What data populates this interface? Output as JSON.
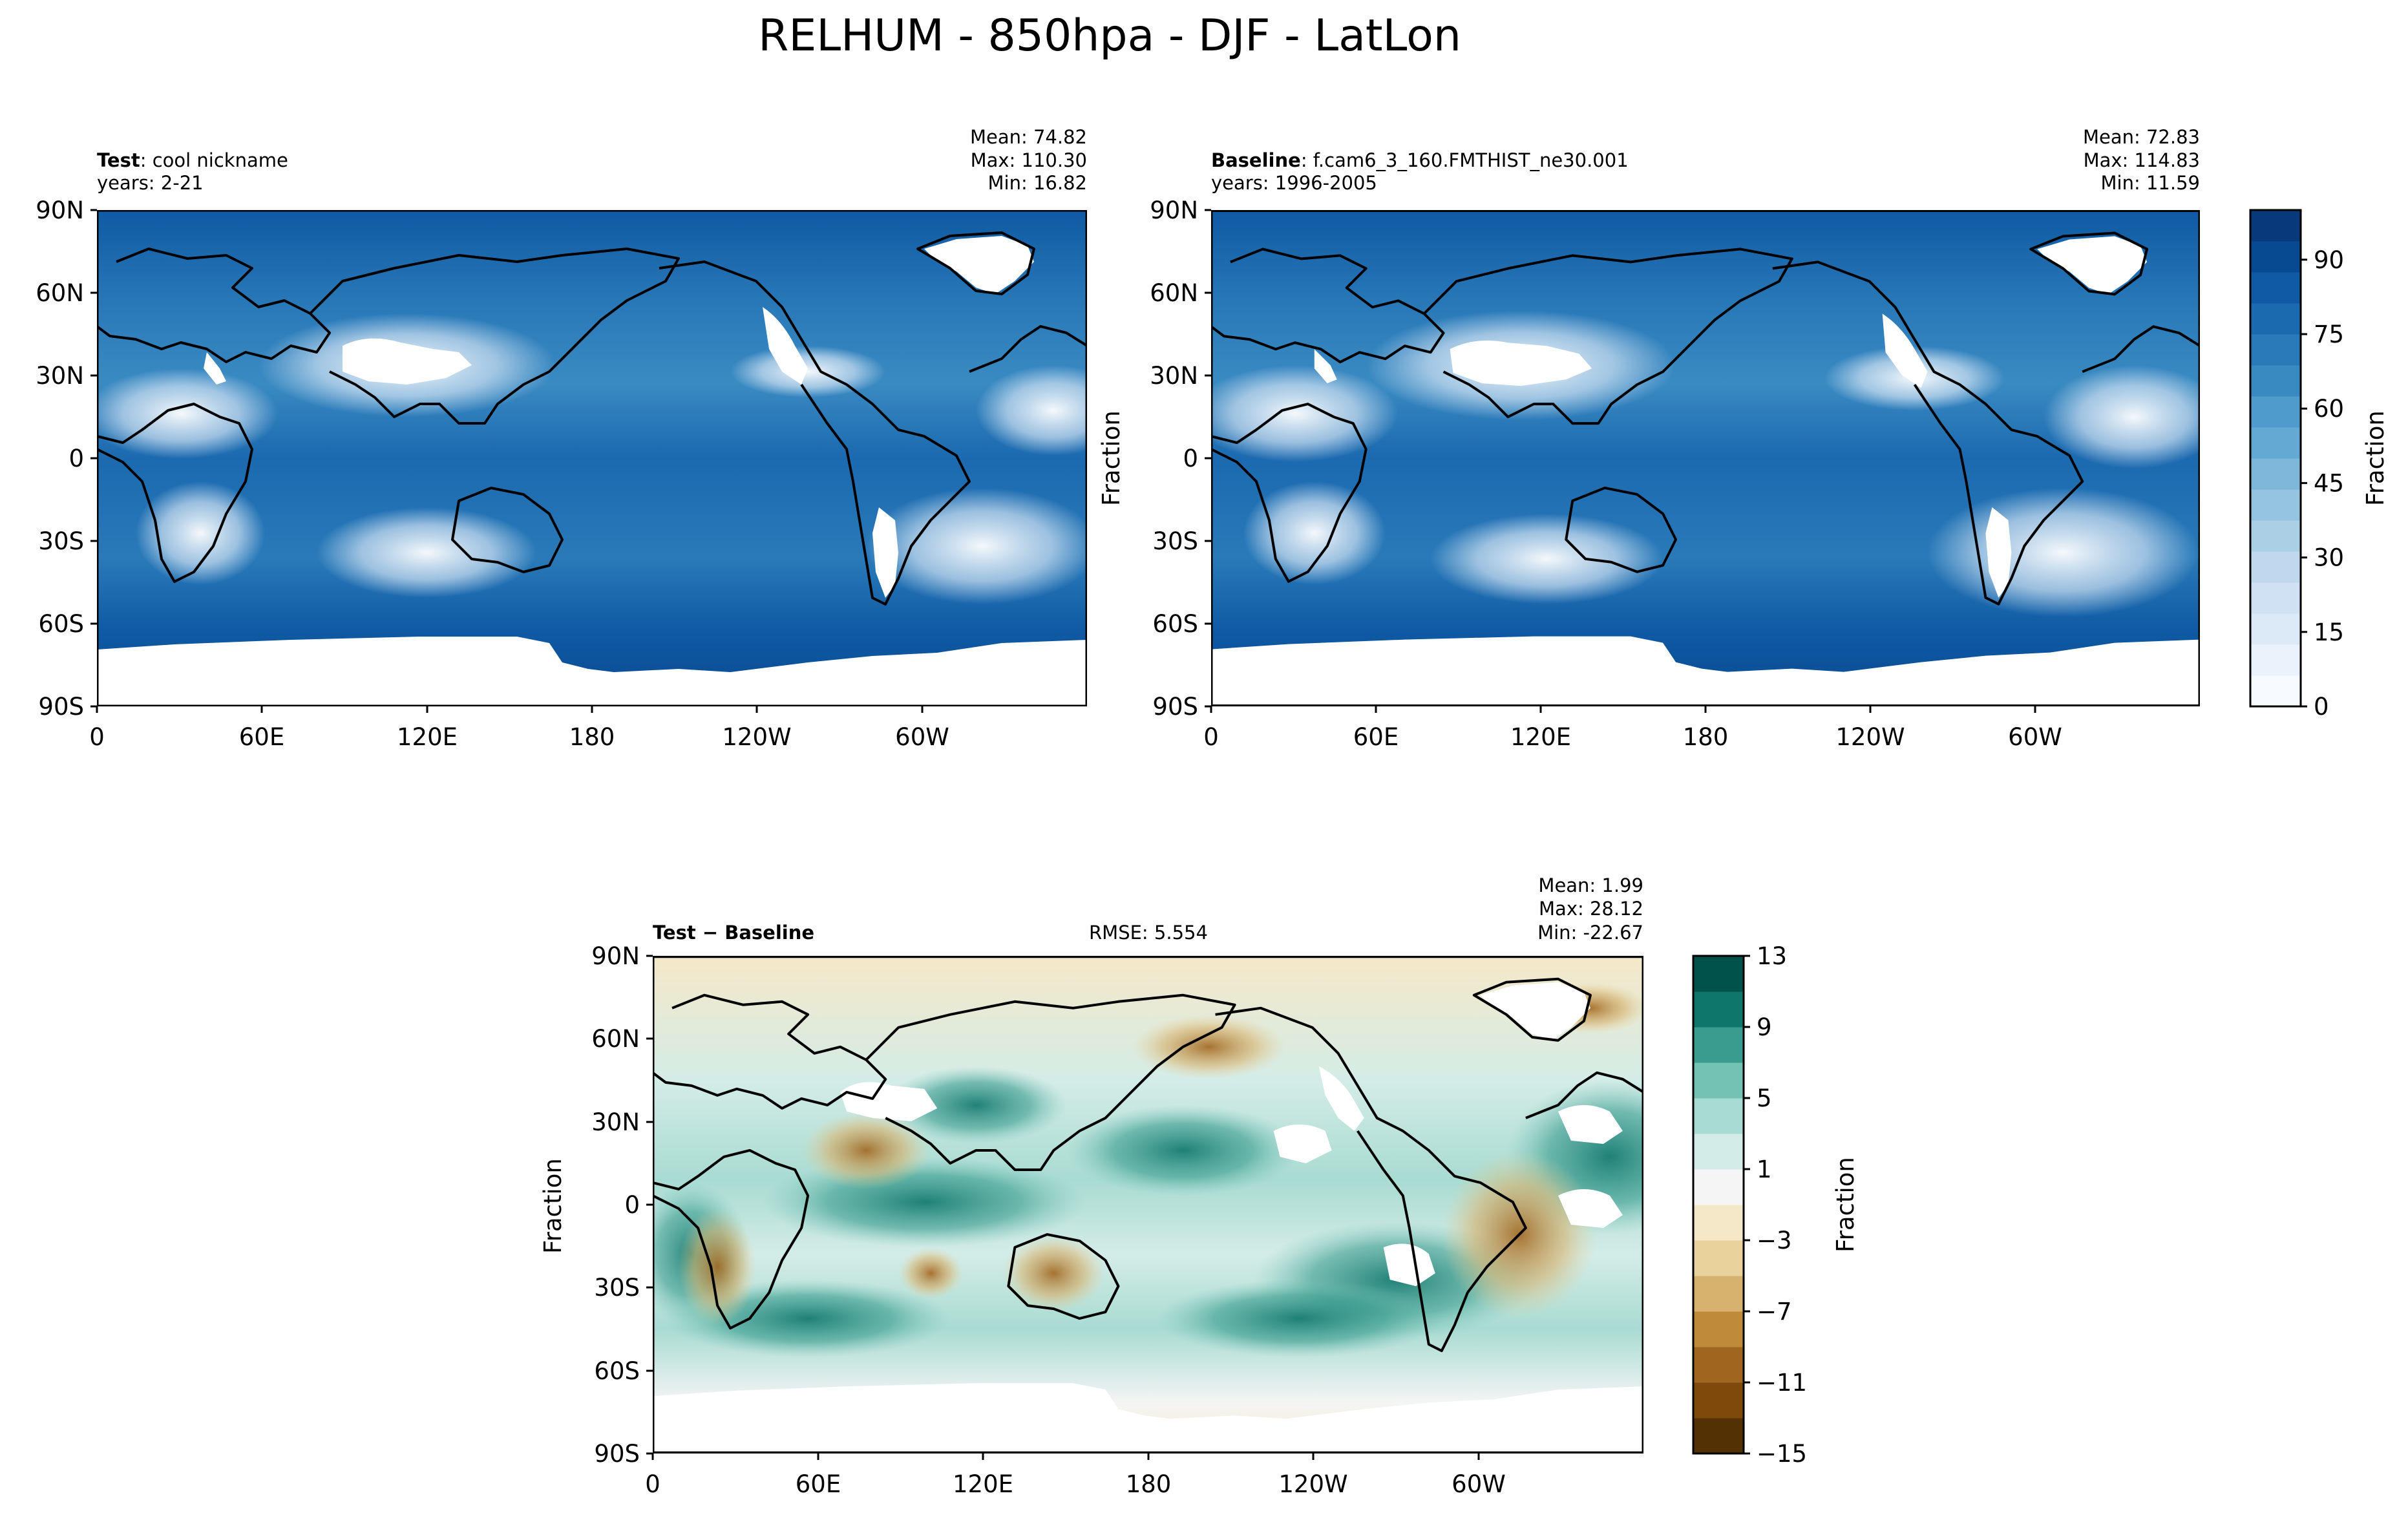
{
  "figure": {
    "title": "RELHUM - 850hpa - DJF - LatLon"
  },
  "chart_data": [
    {
      "type": "heatmap",
      "name": "test",
      "label_bold": "Test",
      "label_rest": ": cool nickname",
      "years": "years: 2-21",
      "stats": {
        "mean": "Mean: 74.82",
        "max": "Max: 110.30",
        "min": "Min: 16.82"
      },
      "ylabel": "",
      "xticks": [
        "0",
        "60E",
        "120E",
        "180",
        "120W",
        "60W"
      ],
      "yticks": [
        "90N",
        "60N",
        "30N",
        "0",
        "30S",
        "60S",
        "90S"
      ],
      "xlim": [
        0,
        360
      ],
      "ylim": [
        -90,
        90
      ]
    },
    {
      "type": "heatmap",
      "name": "baseline",
      "label_bold": "Baseline",
      "label_rest": ": f.cam6_3_160.FMTHIST_ne30.001",
      "years": "years: 1996-2005",
      "stats": {
        "mean": "Mean: 72.83",
        "max": "Max: 114.83",
        "min": "Min: 11.59"
      },
      "ylabel": "Fraction",
      "xticks": [
        "0",
        "60E",
        "120E",
        "180",
        "120W",
        "60W"
      ],
      "yticks": [
        "90N",
        "60N",
        "30N",
        "0",
        "30S",
        "60S",
        "90S"
      ],
      "xlim": [
        0,
        360
      ],
      "ylim": [
        -90,
        90
      ],
      "colorbar": {
        "label": "Fraction",
        "ticks": [
          "0",
          "15",
          "30",
          "45",
          "60",
          "75",
          "90"
        ],
        "range": [
          0,
          100
        ],
        "colors": [
          "#f7fbff",
          "#eaf2fb",
          "#dce9f6",
          "#cfe1f2",
          "#bfd8ed",
          "#abd0e6",
          "#94c4df",
          "#7db8da",
          "#64a9d3",
          "#4f9bcb",
          "#3a8ac2",
          "#2a7ab9",
          "#1b69af",
          "#0f5aa3",
          "#084a91",
          "#08397a"
        ]
      }
    },
    {
      "type": "heatmap",
      "name": "difference",
      "label_bold": "Test − Baseline",
      "rmse": "RMSE: 5.554",
      "stats": {
        "mean": "Mean:  1.99",
        "max": "Max: 28.12",
        "min": "Min: -22.67"
      },
      "ylabel": "Fraction",
      "xticks": [
        "0",
        "60E",
        "120E",
        "180",
        "120W",
        "60W"
      ],
      "yticks": [
        "90N",
        "60N",
        "30N",
        "0",
        "30S",
        "60S",
        "90S"
      ],
      "xlim": [
        0,
        360
      ],
      "ylim": [
        -90,
        90
      ],
      "colorbar": {
        "label": "Fraction",
        "ticks": [
          "13",
          "9",
          "5",
          "1",
          "−3",
          "−7",
          "−11",
          "−15"
        ],
        "range": [
          -15,
          13
        ],
        "colors": [
          "#543005",
          "#7e4a0b",
          "#a0661f",
          "#bf8a3a",
          "#d7b26e",
          "#e9d29c",
          "#f5e8c8",
          "#f5f5f5",
          "#d4ece7",
          "#a8dbd1",
          "#74c2b3",
          "#3a9c8f",
          "#0f766b",
          "#01524a"
        ]
      }
    }
  ]
}
